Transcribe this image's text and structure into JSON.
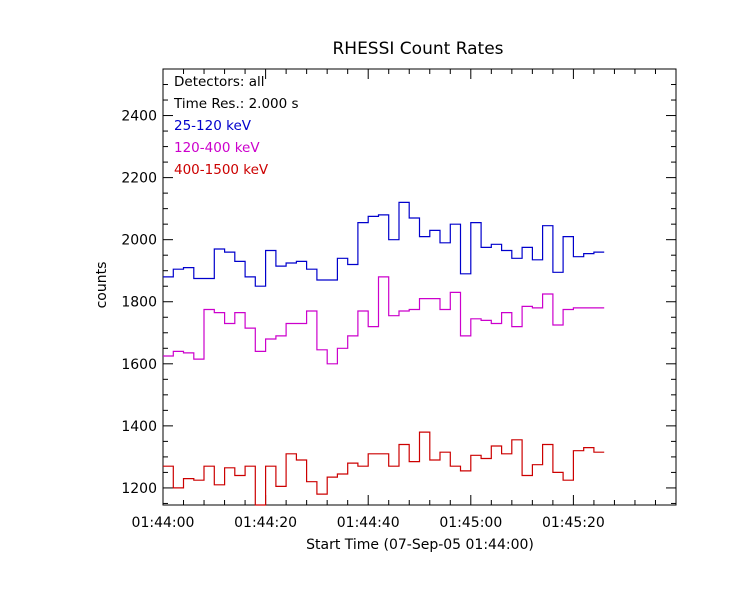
{
  "chart_data": {
    "type": "line",
    "step": true,
    "title": "RHESSI Count Rates",
    "xlabel": "Start Time (07-Sep-05 01:44:00)",
    "ylabel": "counts",
    "xlim": [
      0,
      100
    ],
    "ylim": [
      1145,
      2550
    ],
    "x_unit": "seconds after 01:44:00",
    "x_ticks": [
      {
        "value": 0,
        "label": "01:44:00"
      },
      {
        "value": 20,
        "label": "01:44:20"
      },
      {
        "value": 40,
        "label": "01:44:40"
      },
      {
        "value": 60,
        "label": "01:45:00"
      },
      {
        "value": 80,
        "label": "01:45:20"
      }
    ],
    "y_ticks": [
      {
        "value": 1200,
        "label": "1200"
      },
      {
        "value": 1400,
        "label": "1400"
      },
      {
        "value": 1600,
        "label": "1600"
      },
      {
        "value": 1800,
        "label": "1800"
      },
      {
        "value": 2000,
        "label": "2000"
      },
      {
        "value": 2200,
        "label": "2200"
      },
      {
        "value": 2400,
        "label": "2400"
      }
    ],
    "annotations": [
      "Detectors: all",
      "Time Res.: 2.000 s"
    ],
    "grid": false,
    "series": [
      {
        "name": "25-120 keV",
        "color": "#0000cc",
        "x": [
          0,
          2,
          4,
          6,
          8,
          10,
          12,
          14,
          16,
          18,
          20,
          22,
          24,
          26,
          28,
          30,
          32,
          34,
          36,
          38,
          40,
          42,
          44,
          46,
          48,
          50,
          52,
          54,
          56,
          58,
          60,
          62,
          64,
          66,
          68,
          70,
          72,
          74,
          76,
          78,
          80,
          82,
          84
        ],
        "values": [
          1880,
          1905,
          1910,
          1875,
          1875,
          1970,
          1960,
          1930,
          1880,
          1850,
          1965,
          1915,
          1925,
          1930,
          1905,
          1870,
          1870,
          1940,
          1920,
          2055,
          2075,
          2080,
          2000,
          2120,
          2070,
          2010,
          2030,
          1990,
          2050,
          1890,
          2055,
          1975,
          1985,
          1965,
          1940,
          1975,
          1935,
          2045,
          1895,
          2010,
          1945,
          1955,
          1960
        ]
      },
      {
        "name": "120-400 keV",
        "color": "#cc00cc",
        "x": [
          0,
          2,
          4,
          6,
          8,
          10,
          12,
          14,
          16,
          18,
          20,
          22,
          24,
          26,
          28,
          30,
          32,
          34,
          36,
          38,
          40,
          42,
          44,
          46,
          48,
          50,
          52,
          54,
          56,
          58,
          60,
          62,
          64,
          66,
          68,
          70,
          72,
          74,
          76,
          78,
          80,
          82,
          84
        ],
        "values": [
          1625,
          1640,
          1635,
          1615,
          1775,
          1765,
          1730,
          1765,
          1715,
          1640,
          1680,
          1690,
          1730,
          1730,
          1770,
          1645,
          1600,
          1650,
          1690,
          1770,
          1720,
          1880,
          1755,
          1770,
          1775,
          1810,
          1810,
          1775,
          1830,
          1690,
          1745,
          1740,
          1730,
          1765,
          1720,
          1785,
          1780,
          1825,
          1725,
          1775,
          1780,
          1780,
          1780
        ]
      },
      {
        "name": "400-1500 keV",
        "color": "#cc0000",
        "x": [
          0,
          2,
          4,
          6,
          8,
          10,
          12,
          14,
          16,
          18,
          20,
          22,
          24,
          26,
          28,
          30,
          32,
          34,
          36,
          38,
          40,
          42,
          44,
          46,
          48,
          50,
          52,
          54,
          56,
          58,
          60,
          62,
          64,
          66,
          68,
          70,
          72,
          74,
          76,
          78,
          80,
          82,
          84
        ],
        "values": [
          1270,
          1200,
          1230,
          1225,
          1270,
          1210,
          1265,
          1240,
          1270,
          1140,
          1270,
          1205,
          1310,
          1290,
          1220,
          1180,
          1235,
          1245,
          1280,
          1270,
          1310,
          1310,
          1270,
          1340,
          1285,
          1380,
          1290,
          1315,
          1270,
          1255,
          1305,
          1295,
          1335,
          1310,
          1355,
          1240,
          1275,
          1340,
          1250,
          1225,
          1320,
          1330,
          1315
        ]
      }
    ]
  }
}
